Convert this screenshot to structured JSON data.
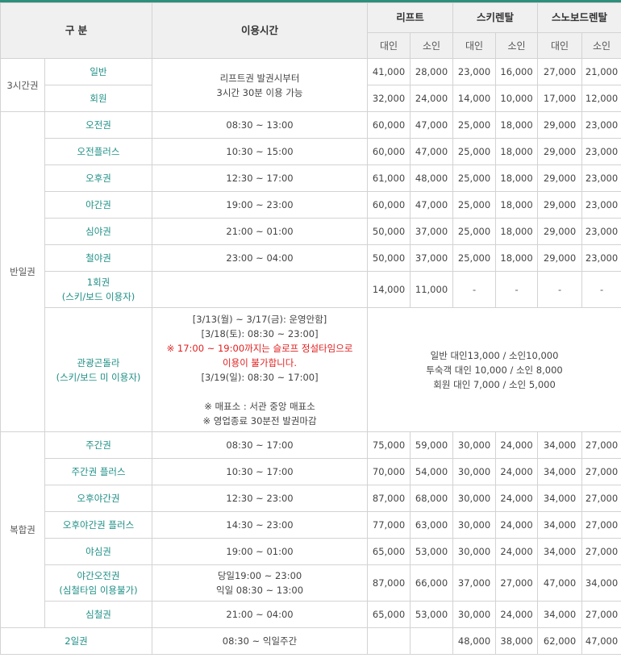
{
  "header": {
    "category": "구 분",
    "time": "이용시간",
    "lift": "리프트",
    "ski": "스키렌탈",
    "board": "스노보드렌탈",
    "adult": "대인",
    "child": "소인"
  },
  "groups": {
    "three_hour": "3시간권",
    "half_day": "반일권",
    "combo": "복합권"
  },
  "three_hour_time": [
    "리프트권 발권시부터",
    "3시간 30분 이용 가능"
  ],
  "rows": [
    {
      "name": "일반",
      "time": "",
      "v": [
        "41,000",
        "28,000",
        "23,000",
        "16,000",
        "27,000",
        "21,000"
      ]
    },
    {
      "name": "회원",
      "time": "",
      "v": [
        "32,000",
        "24,000",
        "14,000",
        "10,000",
        "17,000",
        "12,000"
      ]
    },
    {
      "name": "오전권",
      "time": "08:30 ~ 13:00",
      "v": [
        "60,000",
        "47,000",
        "25,000",
        "18,000",
        "29,000",
        "23,000"
      ]
    },
    {
      "name": "오전플러스",
      "time": "10:30 ~ 15:00",
      "v": [
        "60,000",
        "47,000",
        "25,000",
        "18,000",
        "29,000",
        "23,000"
      ]
    },
    {
      "name": "오후권",
      "time": "12:30 ~ 17:00",
      "v": [
        "61,000",
        "48,000",
        "25,000",
        "18,000",
        "29,000",
        "23,000"
      ]
    },
    {
      "name": "야간권",
      "time": "19:00 ~ 23:00",
      "v": [
        "60,000",
        "47,000",
        "25,000",
        "18,000",
        "29,000",
        "23,000"
      ]
    },
    {
      "name": "심야권",
      "time": "21:00 ~ 01:00",
      "v": [
        "50,000",
        "37,000",
        "25,000",
        "18,000",
        "29,000",
        "23,000"
      ]
    },
    {
      "name": "철야권",
      "time": "23:00 ~ 04:00",
      "v": [
        "50,000",
        "37,000",
        "25,000",
        "18,000",
        "29,000",
        "23,000"
      ]
    },
    {
      "name": "1회권",
      "name2": "(스키/보드 이용자)",
      "time": "",
      "v": [
        "14,000",
        "11,000",
        "-",
        "-",
        "-",
        "-"
      ]
    },
    {
      "name": "주간권",
      "time": "08:30 ~ 17:00",
      "v": [
        "75,000",
        "59,000",
        "30,000",
        "24,000",
        "34,000",
        "27,000"
      ]
    },
    {
      "name": "주간권 플러스",
      "time": "10:30 ~ 17:00",
      "v": [
        "70,000",
        "54,000",
        "30,000",
        "24,000",
        "34,000",
        "27,000"
      ]
    },
    {
      "name": "오후야간권",
      "time": "12:30 ~ 23:00",
      "v": [
        "87,000",
        "68,000",
        "30,000",
        "24,000",
        "34,000",
        "27,000"
      ]
    },
    {
      "name": "오후야간권 플러스",
      "time": "14:30 ~ 23:00",
      "v": [
        "77,000",
        "63,000",
        "30,000",
        "24,000",
        "34,000",
        "27,000"
      ]
    },
    {
      "name": "야심권",
      "time": "19:00 ~ 01:00",
      "v": [
        "65,000",
        "53,000",
        "30,000",
        "24,000",
        "34,000",
        "27,000"
      ]
    },
    {
      "name": "야간오전권",
      "name2": "(심철타임 이용불가)",
      "time": "당일19:00 ~ 23:00",
      "time2": "익일 08:30 ~ 13:00",
      "v": [
        "87,000",
        "66,000",
        "37,000",
        "27,000",
        "47,000",
        "34,000"
      ]
    },
    {
      "name": "심철권",
      "time": "21:00 ~ 04:00",
      "v": [
        "65,000",
        "53,000",
        "30,000",
        "24,000",
        "34,000",
        "27,000"
      ]
    }
  ],
  "gondola": {
    "name": "관광곤돌라",
    "name2": "(스키/보드 미 이용자)",
    "time_lines": [
      "[3/13(월) ~ 3/17(금): 운영안함]",
      "[3/18(토): 08:30 ~ 23:00]"
    ],
    "time_red": [
      "※ 17:00 ~ 19:00까지는 슬로프 정설타임으로",
      "이용이 불가합니다."
    ],
    "time_after": "[3/19(일): 08:30 ~ 17:00]",
    "notes": [
      "※ 매표소 : 서관 중앙 매표소",
      "※ 영업종료 30분전 발권마감"
    ],
    "prices": [
      "일반 대인13,000 / 소인10,000",
      "투숙객 대인 10,000 / 소인 8,000",
      "회원 대인 7,000 / 소인 5,000"
    ]
  },
  "two_day": {
    "name": "2일권",
    "time": "08:30 ~ 익일주간",
    "v": [
      "",
      "",
      "48,000",
      "38,000",
      "62,000",
      "47,000"
    ]
  },
  "colors": {
    "accent": "#2f8f7b",
    "name_text": "#1f8f86",
    "warning": "#e02020",
    "header_bg": "#f0f0f0",
    "border": "#d3d3d3"
  }
}
